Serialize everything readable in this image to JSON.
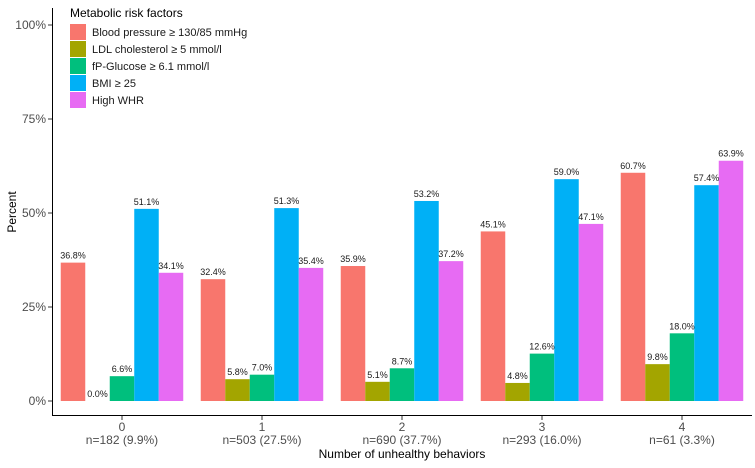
{
  "chart_data": {
    "type": "bar",
    "title": "",
    "xlabel": "Number of unhealthy behaviors",
    "ylabel": "Percent",
    "ylim": [
      0,
      100
    ],
    "yticks": [
      "0%",
      "25%",
      "50%",
      "75%",
      "100%"
    ],
    "ytick_values": [
      0,
      25,
      50,
      75,
      100
    ],
    "categories": [
      "0",
      "1",
      "2",
      "3",
      "4"
    ],
    "category_sublabels": [
      "n=182 (9.9%)",
      "n=503 (27.5%)",
      "n=690 (37.7%)",
      "n=293 (16.0%)",
      "n=61 (3.3%)"
    ],
    "legend_title": "Metabolic risk factors",
    "legend_position": "top-left",
    "grid": false,
    "series": [
      {
        "name": "Blood pressure ≥ 130/85 mmHg",
        "color": "#F8766D",
        "values": [
          36.8,
          32.4,
          35.9,
          45.1,
          60.7
        ],
        "labels": [
          "36.8%",
          "32.4%",
          "35.9%",
          "45.1%",
          "60.7%"
        ]
      },
      {
        "name": "LDL cholesterol ≥ 5 mmol/l",
        "color": "#A3A500",
        "values": [
          0.0,
          5.8,
          5.1,
          4.8,
          9.8
        ],
        "labels": [
          "0.0%",
          "5.8%",
          "5.1%",
          "4.8%",
          "9.8%"
        ]
      },
      {
        "name": "fP-Glucose ≥ 6.1 mmol/l",
        "color": "#00BF7D",
        "values": [
          6.6,
          7.0,
          8.7,
          12.6,
          18.0
        ],
        "labels": [
          "6.6%",
          "7.0%",
          "8.7%",
          "12.6%",
          "18.0%"
        ]
      },
      {
        "name": "BMI ≥ 25",
        "color": "#00B0F6",
        "values": [
          51.1,
          51.3,
          53.2,
          59.0,
          57.4
        ],
        "labels": [
          "51.1%",
          "51.3%",
          "53.2%",
          "59.0%",
          "57.4%"
        ]
      },
      {
        "name": "High WHR",
        "color": "#E76BF3",
        "values": [
          34.1,
          35.4,
          37.2,
          47.1,
          63.9
        ],
        "labels": [
          "34.1%",
          "35.4%",
          "37.2%",
          "47.1%",
          "63.9%"
        ]
      }
    ]
  }
}
